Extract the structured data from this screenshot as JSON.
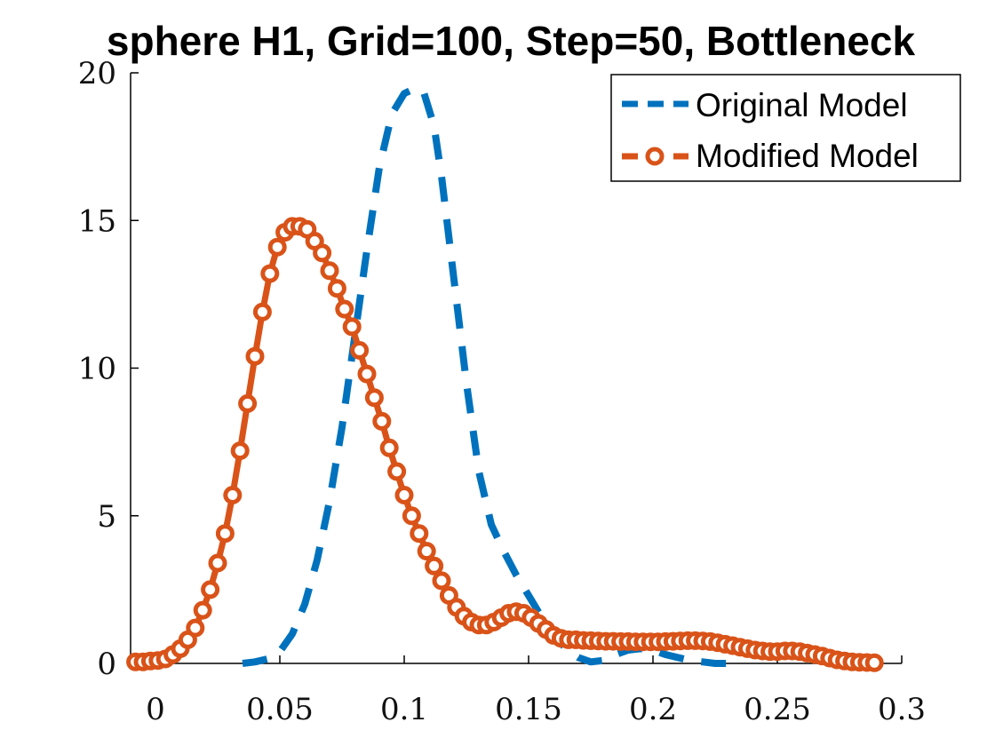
{
  "chart_data": {
    "type": "line",
    "title": "sphere H1, Grid=100, Step=50, Bottleneck",
    "xlabel": "",
    "ylabel": "",
    "xlim": [
      -0.01,
      0.3
    ],
    "ylim": [
      0,
      20
    ],
    "x_ticks": [
      "0",
      "0.05",
      "0.1",
      "0.15",
      "0.2",
      "0.25",
      "0.3"
    ],
    "y_ticks": [
      "0",
      "5",
      "10",
      "15",
      "20"
    ],
    "legend": "top-right",
    "series": [
      {
        "name": "Original Model",
        "color": "#0072BD",
        "style": "dashed",
        "x": [
          0.035,
          0.04,
          0.045,
          0.05,
          0.055,
          0.06,
          0.065,
          0.07,
          0.075,
          0.08,
          0.085,
          0.09,
          0.095,
          0.1,
          0.105,
          0.108,
          0.112,
          0.115,
          0.12,
          0.125,
          0.13,
          0.135,
          0.14,
          0.145,
          0.15,
          0.155,
          0.16,
          0.165,
          0.17,
          0.175,
          0.18,
          0.185,
          0.19,
          0.195,
          0.2,
          0.205,
          0.21,
          0.215,
          0.22,
          0.225,
          0.23
        ],
        "values": [
          0.0,
          0.05,
          0.15,
          0.4,
          1.0,
          2.0,
          3.5,
          5.5,
          8.0,
          11.0,
          14.0,
          16.8,
          18.6,
          19.3,
          19.5,
          19.3,
          18.2,
          16.5,
          13.0,
          9.5,
          6.5,
          4.7,
          3.8,
          3.0,
          2.3,
          1.6,
          1.0,
          0.5,
          0.2,
          0.05,
          0.1,
          0.3,
          0.45,
          0.5,
          0.45,
          0.3,
          0.2,
          0.1,
          0.05,
          0.0,
          0.0
        ]
      },
      {
        "name": "Modified Model",
        "color": "#D95319",
        "style": "solid-circles",
        "x": [
          -0.008,
          -0.005,
          -0.002,
          0.001,
          0.004,
          0.007,
          0.01,
          0.013,
          0.016,
          0.019,
          0.022,
          0.025,
          0.028,
          0.031,
          0.034,
          0.037,
          0.04,
          0.043,
          0.046,
          0.049,
          0.052,
          0.055,
          0.058,
          0.061,
          0.064,
          0.067,
          0.07,
          0.073,
          0.076,
          0.079,
          0.082,
          0.085,
          0.088,
          0.091,
          0.094,
          0.097,
          0.1,
          0.103,
          0.106,
          0.109,
          0.112,
          0.115,
          0.118,
          0.121,
          0.124,
          0.127,
          0.13,
          0.133,
          0.136,
          0.139,
          0.142,
          0.145,
          0.148,
          0.151,
          0.154,
          0.157,
          0.16,
          0.163,
          0.166,
          0.169,
          0.172,
          0.175,
          0.178,
          0.181,
          0.184,
          0.187,
          0.19,
          0.193,
          0.196,
          0.199,
          0.202,
          0.205,
          0.208,
          0.211,
          0.214,
          0.217,
          0.22,
          0.223,
          0.226,
          0.229,
          0.232,
          0.235,
          0.238,
          0.241,
          0.244,
          0.247,
          0.25,
          0.253,
          0.256,
          0.259,
          0.262,
          0.265,
          0.268,
          0.271,
          0.274,
          0.277,
          0.28,
          0.283,
          0.286,
          0.289
        ],
        "values": [
          0.05,
          0.05,
          0.08,
          0.1,
          0.15,
          0.3,
          0.5,
          0.8,
          1.2,
          1.8,
          2.5,
          3.4,
          4.4,
          5.7,
          7.2,
          8.8,
          10.4,
          11.9,
          13.2,
          14.1,
          14.6,
          14.8,
          14.8,
          14.7,
          14.3,
          13.9,
          13.3,
          12.7,
          12.0,
          11.4,
          10.6,
          9.8,
          9.0,
          8.2,
          7.3,
          6.5,
          5.7,
          5.0,
          4.4,
          3.8,
          3.3,
          2.8,
          2.3,
          1.9,
          1.6,
          1.4,
          1.3,
          1.3,
          1.4,
          1.55,
          1.7,
          1.75,
          1.7,
          1.55,
          1.35,
          1.15,
          0.95,
          0.85,
          0.8,
          0.8,
          0.78,
          0.77,
          0.76,
          0.75,
          0.75,
          0.74,
          0.74,
          0.73,
          0.73,
          0.73,
          0.73,
          0.74,
          0.75,
          0.76,
          0.77,
          0.77,
          0.76,
          0.74,
          0.7,
          0.65,
          0.6,
          0.55,
          0.5,
          0.45,
          0.42,
          0.4,
          0.4,
          0.42,
          0.42,
          0.4,
          0.35,
          0.3,
          0.25,
          0.18,
          0.12,
          0.08,
          0.05,
          0.04,
          0.03,
          0.02
        ]
      }
    ]
  }
}
